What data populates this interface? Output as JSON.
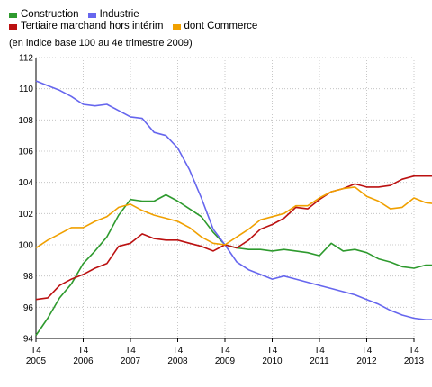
{
  "chart_data": {
    "type": "line",
    "title": "",
    "subtitle": "(en indice base 100 au 4e trimestre 2009)",
    "xlabel": "",
    "ylabel": "",
    "ylim": [
      94,
      112
    ],
    "yticks": [
      94,
      96,
      98,
      100,
      102,
      104,
      106,
      108,
      110,
      112
    ],
    "xlim": [
      2005.75,
      2013.75
    ],
    "xticks": [
      {
        "x": 2005.75,
        "top": "T4",
        "bottom": "2005"
      },
      {
        "x": 2006.75,
        "top": "T4",
        "bottom": "2006"
      },
      {
        "x": 2007.75,
        "top": "T4",
        "bottom": "2007"
      },
      {
        "x": 2008.75,
        "top": "T4",
        "bottom": "2008"
      },
      {
        "x": 2009.75,
        "top": "T4",
        "bottom": "2009"
      },
      {
        "x": 2010.75,
        "top": "T4",
        "bottom": "2010"
      },
      {
        "x": 2011.75,
        "top": "T4",
        "bottom": "2011"
      },
      {
        "x": 2012.75,
        "top": "T4",
        "bottom": "2012"
      },
      {
        "x": 2013.75,
        "top": "T4",
        "bottom": "2013"
      }
    ],
    "grid": true,
    "legend": "top-left",
    "x": [
      2005.75,
      2006.0,
      2006.25,
      2006.5,
      2006.75,
      2007.0,
      2007.25,
      2007.5,
      2007.75,
      2008.0,
      2008.25,
      2008.5,
      2008.75,
      2009.0,
      2009.25,
      2009.5,
      2009.75,
      2010.0,
      2010.25,
      2010.5,
      2010.75,
      2011.0,
      2011.25,
      2011.5,
      2011.75,
      2012.0,
      2012.25,
      2012.5,
      2012.75,
      2013.0,
      2013.25,
      2013.5,
      2013.75,
      2014.0,
      2014.25
    ],
    "series": [
      {
        "name": "Construction",
        "color": "#2e9a2e",
        "values": [
          94.2,
          95.3,
          96.6,
          97.5,
          98.8,
          99.6,
          100.5,
          101.9,
          102.9,
          102.8,
          102.8,
          103.2,
          102.8,
          102.3,
          101.8,
          100.8,
          100.0,
          99.8,
          99.7,
          99.7,
          99.6,
          99.7,
          99.6,
          99.5,
          99.3,
          100.1,
          99.6,
          99.7,
          99.5,
          99.1,
          98.9,
          98.6,
          98.5,
          98.7,
          98.7
        ]
      },
      {
        "name": "Industrie",
        "color": "#6666ee",
        "values": [
          110.5,
          110.2,
          109.9,
          109.5,
          109.0,
          108.9,
          109.0,
          108.6,
          108.2,
          108.1,
          107.2,
          107.0,
          106.2,
          104.8,
          103.0,
          101.0,
          100.0,
          98.9,
          98.4,
          98.1,
          97.8,
          98.0,
          97.8,
          97.6,
          97.4,
          97.2,
          97.0,
          96.8,
          96.5,
          96.2,
          95.8,
          95.5,
          95.3,
          95.2,
          95.2
        ]
      },
      {
        "name": "Tertiaire marchand hors intérim",
        "color": "#bb1111",
        "values": [
          96.5,
          96.6,
          97.4,
          97.8,
          98.1,
          98.5,
          98.8,
          99.9,
          100.1,
          100.7,
          100.4,
          100.3,
          100.3,
          100.1,
          99.9,
          99.6,
          100.0,
          99.8,
          100.3,
          101.0,
          101.3,
          101.7,
          102.4,
          102.3,
          102.9,
          103.4,
          103.6,
          103.9,
          103.7,
          103.7,
          103.8,
          104.2,
          104.4,
          104.4,
          104.4
        ]
      },
      {
        "name": "dont Commerce",
        "color": "#f0a000",
        "values": [
          99.8,
          100.3,
          100.7,
          101.1,
          101.1,
          101.5,
          101.8,
          102.4,
          102.6,
          102.2,
          101.9,
          101.7,
          101.5,
          101.1,
          100.5,
          100.1,
          100.0,
          100.5,
          101.0,
          101.6,
          101.8,
          102.0,
          102.5,
          102.5,
          103.0,
          103.4,
          103.6,
          103.7,
          103.1,
          102.8,
          102.3,
          102.4,
          103.0,
          102.7,
          102.6
        ]
      }
    ]
  }
}
